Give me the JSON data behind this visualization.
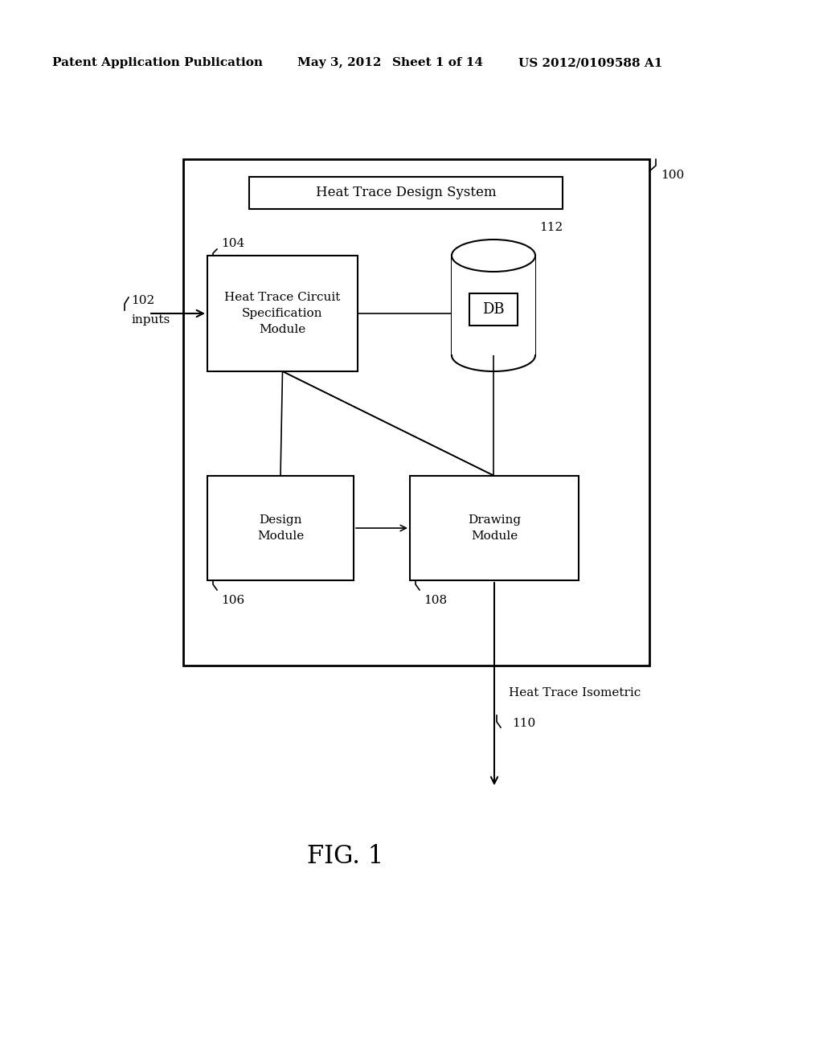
{
  "bg_color": "#ffffff",
  "header_text": "Patent Application Publication",
  "header_date": "May 3, 2012",
  "header_sheet": "Sheet 1 of 14",
  "header_patent": "US 2012/0109588 A1",
  "fig_label": "FIG. 1",
  "outer_box_label": "100",
  "title_box_text": "Heat Trace Design System",
  "spec_box_text": "Heat Trace Circuit\nSpecification\nModule",
  "spec_box_label": "104",
  "db_label": "112",
  "db_text": "DB",
  "design_box_text": "Design\nModule",
  "design_box_label": "106",
  "drawing_box_text": "Drawing\nModule",
  "drawing_box_label": "108",
  "inputs_label": "102",
  "inputs_text": "inputs",
  "output_text": "Heat Trace Isometric",
  "output_label": "110"
}
